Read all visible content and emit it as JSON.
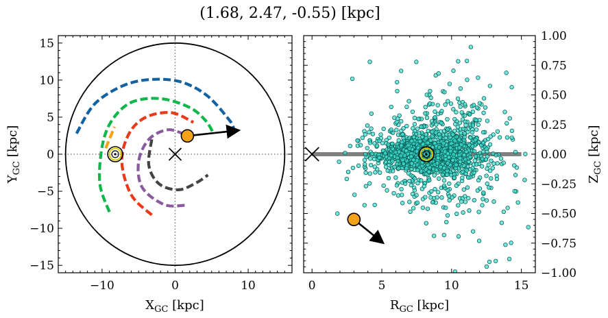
{
  "title": "(1.68, 2.47, -0.55) [kpc]",
  "colors": {
    "blue_arm": "#1261a0",
    "green_arm": "#0fb64a",
    "orange_arm": "#f5a21b",
    "red_arm": "#e8391b",
    "purple_arm": "#8a5a9e",
    "grey_arm": "#444444",
    "target": "#f5a21b",
    "stars": "#3fe0d0",
    "plane": "#808080"
  },
  "chart_data": [
    {
      "type": "scatter",
      "panel": "galactocentric-xy",
      "xlabel": "X<sub>GC</sub> [kpc]",
      "ylabel": "Y<sub>GC</sub> [kpc]",
      "xlim": [
        -16,
        16
      ],
      "ylim": [
        -16,
        16
      ],
      "xticks": [
        -10,
        0,
        10
      ],
      "yticks": [
        -15,
        -10,
        -5,
        0,
        5,
        10,
        15
      ],
      "xtick_labels": [
        "−10",
        "0",
        "10"
      ],
      "ytick_labels": [
        "−15",
        "−10",
        "−5",
        "0",
        "5",
        "10",
        "15"
      ],
      "boundary_circle_radius": 15,
      "galactic_center": [
        0,
        0
      ],
      "sun": [
        -8.2,
        0
      ],
      "target": [
        1.68,
        2.47
      ],
      "target_velocity_arrow": [
        [
          1.68,
          2.47
        ],
        [
          8.5,
          3.2
        ]
      ],
      "spiral_arms": [
        {
          "color_key": "blue_arm",
          "points": [
            [
              -13.5,
              2.8
            ],
            [
              -11,
              6.8
            ],
            [
              -7,
              9.3
            ],
            [
              -3,
              10.1
            ],
            [
              1,
              9.7
            ],
            [
              4.5,
              7.8
            ],
            [
              7.5,
              4.5
            ],
            [
              8.0,
              3.5
            ]
          ]
        },
        {
          "color_key": "green_arm",
          "points": [
            [
              -9,
              -7.8
            ],
            [
              -10.3,
              -4
            ],
            [
              -10,
              1
            ],
            [
              -8.7,
              4.5
            ],
            [
              -6,
              7
            ],
            [
              -2,
              7.5
            ],
            [
              2,
              6.3
            ],
            [
              4.2,
              4.5
            ],
            [
              5.3,
              2.7
            ]
          ]
        },
        {
          "color_key": "orange_arm",
          "points": [
            [
              -9.5,
              0.8
            ],
            [
              -8.3,
              3.7
            ]
          ]
        },
        {
          "color_key": "red_arm",
          "points": [
            [
              -3.2,
              -8.2
            ],
            [
              -6,
              -5.5
            ],
            [
              -7.3,
              -1
            ],
            [
              -6.3,
              2.8
            ],
            [
              -4,
              5.0
            ],
            [
              -0.5,
              5.6
            ],
            [
              2.5,
              4.3
            ]
          ]
        },
        {
          "color_key": "purple_arm",
          "points": [
            [
              1.3,
              -6.9
            ],
            [
              -1.5,
              -6.8
            ],
            [
              -4.5,
              -4.5
            ],
            [
              -5.0,
              -1
            ],
            [
              -3.6,
              2.0
            ],
            [
              -1.0,
              3.3
            ],
            [
              1.5,
              2.6
            ]
          ]
        },
        {
          "color_key": "grey_arm",
          "points": [
            [
              -3.2,
              2.0
            ],
            [
              -3.6,
              -1.5
            ],
            [
              -2.2,
              -4.0
            ],
            [
              0.5,
              -4.8
            ],
            [
              3,
              -3.8
            ],
            [
              4.5,
              -2.8
            ]
          ]
        }
      ]
    },
    {
      "type": "scatter",
      "panel": "galactocentric-rz",
      "xlabel": "R<sub>GC</sub> [kpc]",
      "ylabel": "Z<sub>GC</sub> [kpc]",
      "xlim": [
        -0.6,
        16
      ],
      "ylim": [
        -1.0,
        1.0
      ],
      "xticks": [
        0,
        5,
        10,
        15
      ],
      "yticks": [
        -1.0,
        -0.75,
        -0.5,
        -0.25,
        0.0,
        0.25,
        0.5,
        0.75,
        1.0
      ],
      "xtick_labels": [
        "0",
        "5",
        "10",
        "15"
      ],
      "ytick_labels": [
        "−1.00",
        "−0.75",
        "−0.50",
        "−0.25",
        "0.00",
        "0.25",
        "0.50",
        "0.75",
        "1.00"
      ],
      "galactic_plane": {
        "x": [
          0,
          15
        ],
        "y": 0
      },
      "galactic_center": [
        0,
        0
      ],
      "sun": [
        8.2,
        0
      ],
      "target": [
        3.0,
        -0.55
      ],
      "target_velocity_arrow": [
        [
          3.0,
          -0.55
        ],
        [
          5.0,
          -0.74
        ]
      ],
      "stars_distribution": {
        "center_r": 8.3,
        "count": 1700,
        "r_range": [
          1.5,
          15.5
        ],
        "z_range": [
          -1.0,
          0.95
        ]
      }
    }
  ]
}
